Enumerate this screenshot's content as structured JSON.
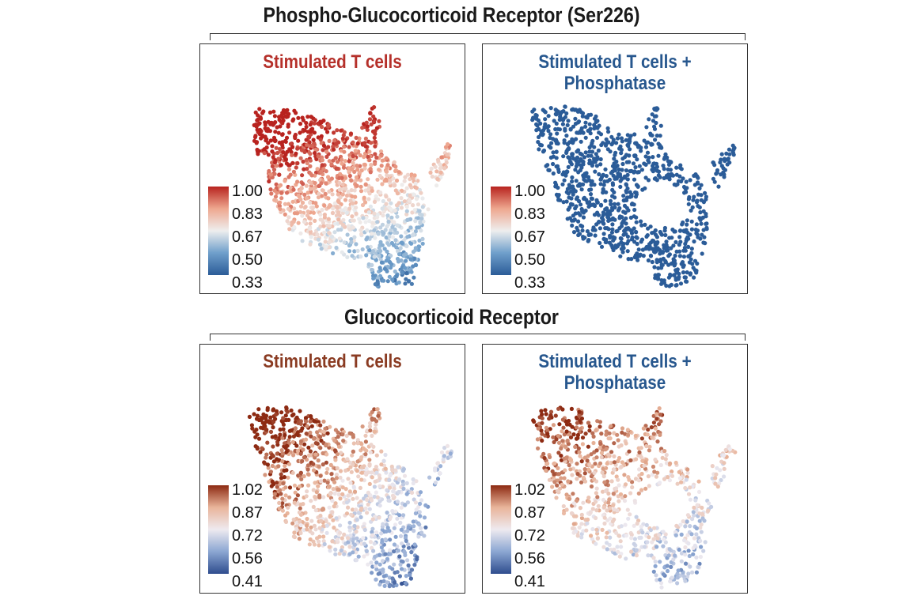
{
  "figure": {
    "section1_title": "Phospho-Glucocorticoid Receptor (Ser226)",
    "section2_title": "Glucocorticoid Receptor"
  },
  "colors": {
    "red_title": "#b5302a",
    "blue_title": "#27578e",
    "brown_title": "#8a3b22"
  },
  "chart_data": [
    {
      "type": "scatter",
      "title": "Stimulated T cells",
      "group": "Phospho-Glucocorticoid Receptor (Ser226)",
      "color_scale": "red-white-blue",
      "colorbar_ticks": [
        "1.00",
        "0.83",
        "0.67",
        "0.50",
        "0.33"
      ],
      "color_range": [
        0.33,
        1.0
      ]
    },
    {
      "type": "scatter",
      "title": "Stimulated T cells + Phosphatase",
      "title_line1": "Stimulated T cells +",
      "title_line2": "Phosphatase",
      "group": "Phospho-Glucocorticoid Receptor (Ser226)",
      "color_scale": "red-white-blue",
      "colorbar_ticks": [
        "1.00",
        "0.83",
        "0.67",
        "0.50",
        "0.33"
      ],
      "color_range": [
        0.33,
        1.0
      ]
    },
    {
      "type": "scatter",
      "title": "Stimulated T cells",
      "group": "Glucocorticoid Receptor",
      "color_scale": "brown-white-blue",
      "colorbar_ticks": [
        "1.02",
        "0.87",
        "0.72",
        "0.56",
        "0.41"
      ],
      "color_range": [
        0.41,
        1.02
      ]
    },
    {
      "type": "scatter",
      "title": "Stimulated T cells + Phosphatase",
      "title_line1": "Stimulated T cells +",
      "title_line2": "Phosphatase",
      "group": "Glucocorticoid Receptor",
      "color_scale": "brown-white-blue",
      "colorbar_ticks": [
        "1.02",
        "0.87",
        "0.72",
        "0.56",
        "0.41"
      ],
      "color_range": [
        0.41,
        1.02
      ]
    }
  ]
}
